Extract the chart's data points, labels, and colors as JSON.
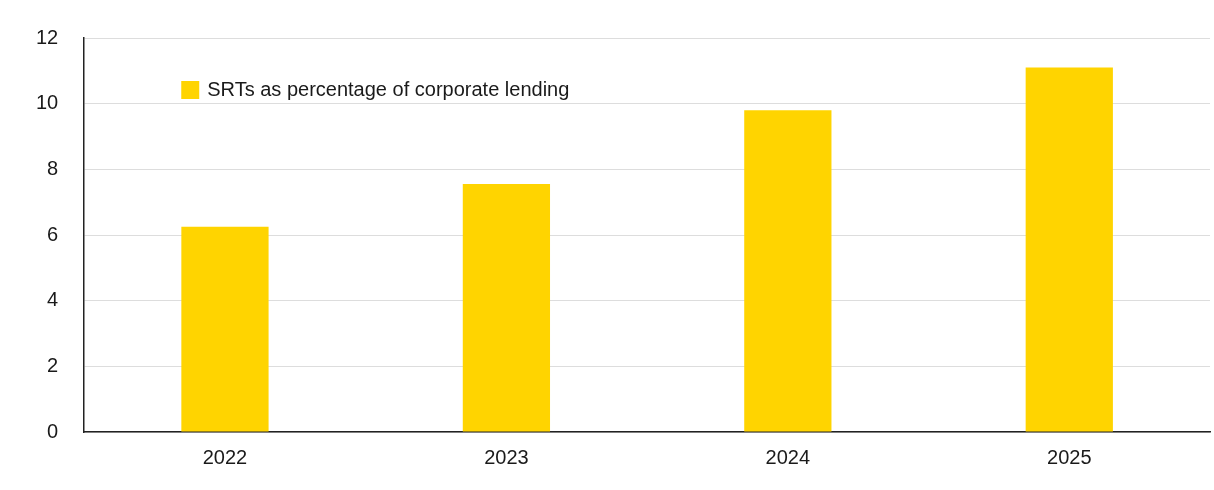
{
  "chart_data": {
    "type": "bar",
    "categories": [
      "2022",
      "2023",
      "2024",
      "2025"
    ],
    "series": [
      {
        "name": "SRTs as percentage of corporate lending",
        "color": "#ffd400",
        "values": [
          6.25,
          7.55,
          9.8,
          11.1
        ]
      }
    ],
    "ylim": [
      0,
      12
    ],
    "yticks": [
      0,
      2,
      4,
      6,
      8,
      10,
      12
    ],
    "grid": "y",
    "legend": "top left"
  }
}
